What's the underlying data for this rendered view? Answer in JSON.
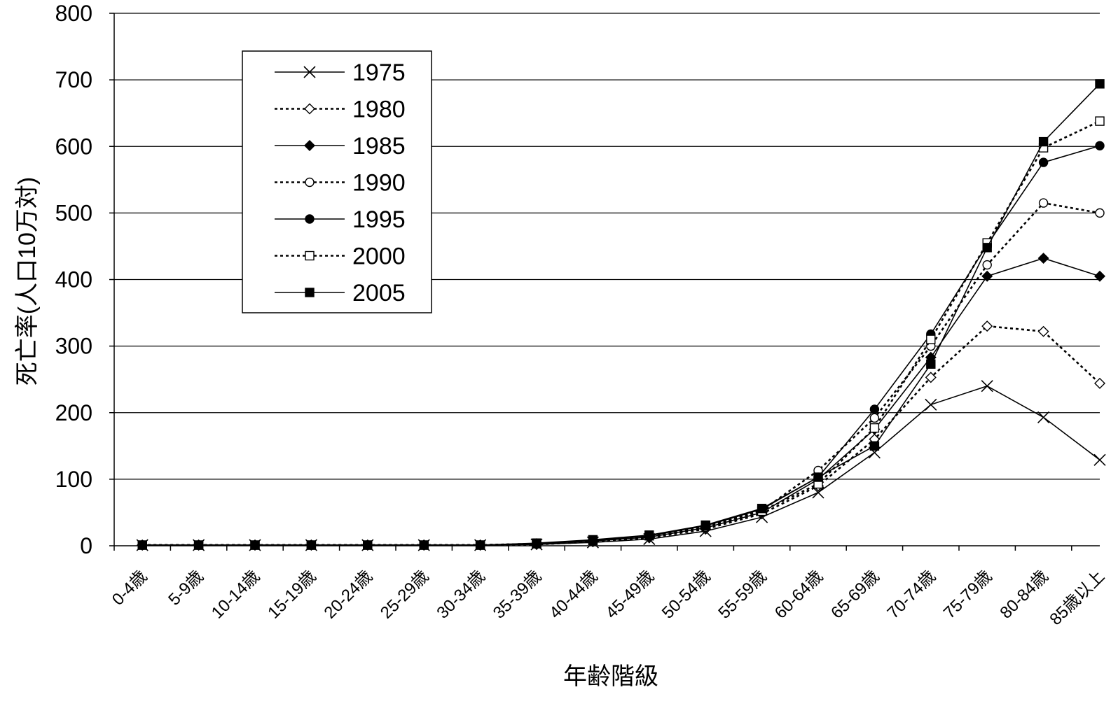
{
  "chart_data": {
    "type": "line",
    "title": "",
    "xlabel": "年齢階級",
    "ylabel": "死亡率(人口10万対)",
    "ylim": [
      0,
      800
    ],
    "yticks": [
      0,
      100,
      200,
      300,
      400,
      500,
      600,
      700,
      800
    ],
    "grid": "horizontal",
    "legend_position": "top-left",
    "categories": [
      "0-4歳",
      "5-9歳",
      "10-14歳",
      "15-19歳",
      "20-24歳",
      "25-29歳",
      "30-34歳",
      "35-39歳",
      "40-44歳",
      "45-49歳",
      "50-54歳",
      "55-59歳",
      "60-64歳",
      "65-69歳",
      "70-74歳",
      "75-79歳",
      "80-84歳",
      "85歳以上"
    ],
    "series": [
      {
        "name": "1975",
        "marker": "x",
        "line": "solid",
        "values": [
          1,
          1,
          1,
          1,
          1,
          1,
          1,
          2,
          5,
          10,
          22,
          43,
          80,
          140,
          212,
          240,
          193,
          129
        ]
      },
      {
        "name": "1980",
        "marker": "diamond-open",
        "line": "dotted",
        "values": [
          1,
          1,
          1,
          1,
          1,
          1,
          1,
          2,
          6,
          12,
          25,
          48,
          90,
          160,
          253,
          330,
          322,
          244
        ]
      },
      {
        "name": "1985",
        "marker": "diamond-filled",
        "line": "solid",
        "values": [
          1,
          1,
          1,
          1,
          1,
          1,
          1,
          3,
          7,
          13,
          27,
          50,
          100,
          175,
          283,
          405,
          432,
          405
        ]
      },
      {
        "name": "1990",
        "marker": "circle-open",
        "line": "dotted",
        "values": [
          1,
          1,
          1,
          1,
          1,
          1,
          1,
          3,
          8,
          14,
          28,
          53,
          113,
          192,
          300,
          422,
          515,
          500
        ]
      },
      {
        "name": "1995",
        "marker": "circle-filled",
        "line": "solid",
        "values": [
          1,
          1,
          1,
          1,
          1,
          1,
          1,
          3,
          8,
          15,
          30,
          55,
          103,
          205,
          318,
          452,
          576,
          601
        ]
      },
      {
        "name": "2000",
        "marker": "square-open",
        "line": "dotted",
        "values": [
          1,
          1,
          1,
          1,
          1,
          1,
          1,
          3,
          8,
          15,
          30,
          52,
          93,
          177,
          310,
          455,
          598,
          638
        ]
      },
      {
        "name": "2005",
        "marker": "square-filled",
        "line": "solid",
        "values": [
          1,
          1,
          1,
          1,
          1,
          1,
          1,
          4,
          9,
          16,
          31,
          56,
          103,
          150,
          273,
          448,
          607,
          694
        ]
      }
    ]
  }
}
